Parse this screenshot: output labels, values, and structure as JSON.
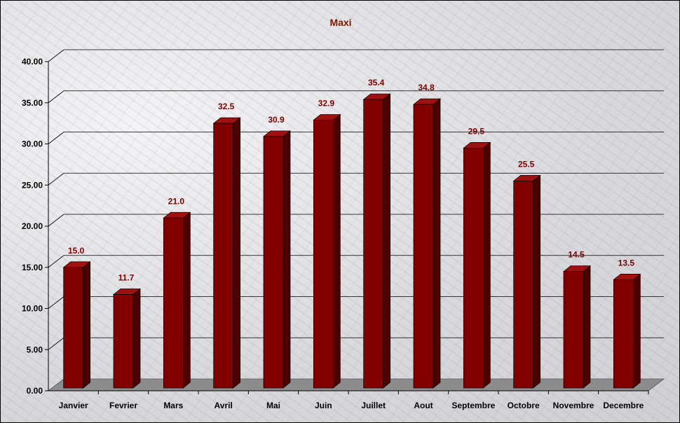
{
  "chart_data": {
    "type": "bar",
    "title": "Maxi",
    "categories": [
      "Janvier",
      "Fevrier",
      "Mars",
      "Avril",
      "Mai",
      "Juin",
      "Juillet",
      "Aout",
      "Septembre",
      "Octobre",
      "Novembre",
      "Decembre"
    ],
    "values": [
      15.0,
      11.7,
      21.0,
      32.5,
      30.9,
      32.9,
      35.4,
      34.8,
      29.5,
      25.5,
      14.5,
      13.5
    ],
    "value_labels": [
      "15.0",
      "11.7",
      "21.0",
      "32.5",
      "30.9",
      "32.9",
      "35.4",
      "34.8",
      "29.5",
      "25.5",
      "14.5",
      "13.5"
    ],
    "yticks": [
      "0.00",
      "5.00",
      "10.00",
      "15.00",
      "20.00",
      "25.00",
      "30.00",
      "35.00",
      "40.00"
    ],
    "ylim": [
      0,
      40
    ],
    "grid": true,
    "legend": "none",
    "colors": {
      "bar_front": "#800000",
      "bar_side": "#4d0000",
      "bar_top": "#a01010",
      "label": "#7a0000",
      "title": "#7a1a00"
    }
  }
}
